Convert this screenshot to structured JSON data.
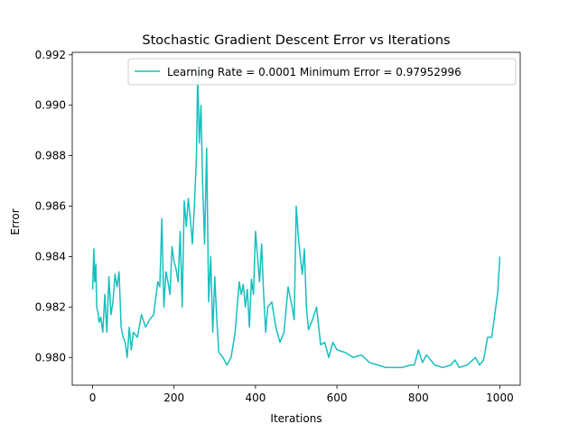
{
  "chart_data": {
    "type": "line",
    "title": "Stochastic Gradient Descent Error vs Iterations",
    "xlabel": "Iterations",
    "ylabel": "Error",
    "xlim": [
      -50,
      1050
    ],
    "ylim": [
      0.9789,
      0.9921
    ],
    "xticks": [
      0,
      200,
      400,
      600,
      800,
      1000
    ],
    "yticks": [
      0.98,
      0.982,
      0.984,
      0.986,
      0.988,
      0.99,
      0.992
    ],
    "ytick_labels": [
      "0.980",
      "0.982",
      "0.984",
      "0.986",
      "0.988",
      "0.990",
      "0.992"
    ],
    "grid": false,
    "legend_position": "top-right",
    "series": [
      {
        "name": "Learning Rate = 0.0001 Minimum Error = 0.97952996",
        "color": "#17bfbf",
        "x": [
          0,
          3,
          5,
          8,
          10,
          13,
          16,
          20,
          25,
          30,
          35,
          40,
          45,
          50,
          55,
          60,
          65,
          70,
          75,
          80,
          85,
          90,
          95,
          100,
          110,
          120,
          130,
          140,
          150,
          160,
          165,
          170,
          175,
          180,
          185,
          190,
          195,
          200,
          205,
          210,
          215,
          220,
          225,
          230,
          235,
          240,
          245,
          250,
          255,
          258,
          262,
          266,
          270,
          275,
          280,
          285,
          290,
          295,
          300,
          305,
          310,
          320,
          330,
          340,
          350,
          360,
          365,
          370,
          375,
          380,
          385,
          390,
          395,
          400,
          405,
          410,
          415,
          420,
          425,
          430,
          440,
          450,
          460,
          470,
          480,
          490,
          495,
          500,
          505,
          510,
          515,
          520,
          525,
          530,
          540,
          550,
          560,
          570,
          580,
          590,
          600,
          620,
          640,
          660,
          680,
          700,
          720,
          740,
          760,
          780,
          790,
          800,
          810,
          820,
          840,
          860,
          880,
          890,
          900,
          920,
          940,
          950,
          960,
          970,
          980,
          990,
          995,
          1000
        ],
        "y": [
          0.9827,
          0.9843,
          0.983,
          0.9837,
          0.982,
          0.9818,
          0.9814,
          0.9816,
          0.981,
          0.9825,
          0.981,
          0.9832,
          0.9817,
          0.9822,
          0.9833,
          0.9828,
          0.9834,
          0.9812,
          0.9808,
          0.9806,
          0.98,
          0.9812,
          0.9803,
          0.981,
          0.9808,
          0.9817,
          0.9812,
          0.9815,
          0.9817,
          0.983,
          0.9828,
          0.9855,
          0.982,
          0.9834,
          0.983,
          0.9825,
          0.9844,
          0.9838,
          0.9835,
          0.983,
          0.985,
          0.982,
          0.9862,
          0.9852,
          0.9863,
          0.9855,
          0.9845,
          0.986,
          0.988,
          0.9912,
          0.9885,
          0.99,
          0.987,
          0.9845,
          0.9883,
          0.9822,
          0.984,
          0.981,
          0.9832,
          0.9815,
          0.9802,
          0.98,
          0.9797,
          0.98,
          0.981,
          0.983,
          0.9825,
          0.9829,
          0.982,
          0.9827,
          0.9812,
          0.9831,
          0.9825,
          0.985,
          0.984,
          0.983,
          0.9845,
          0.9825,
          0.981,
          0.982,
          0.9822,
          0.9812,
          0.9806,
          0.981,
          0.9828,
          0.982,
          0.9815,
          0.986,
          0.9848,
          0.984,
          0.9833,
          0.9843,
          0.982,
          0.9811,
          0.9815,
          0.982,
          0.9805,
          0.9806,
          0.98,
          0.9806,
          0.9803,
          0.9802,
          0.98,
          0.9801,
          0.9798,
          0.9797,
          0.9796,
          0.9796,
          0.9796,
          0.9797,
          0.9797,
          0.9803,
          0.9798,
          0.9801,
          0.9797,
          0.9796,
          0.9797,
          0.9799,
          0.9796,
          0.9797,
          0.98,
          0.9797,
          0.9799,
          0.9808,
          0.9808,
          0.982,
          0.9826,
          0.984
        ]
      }
    ]
  }
}
